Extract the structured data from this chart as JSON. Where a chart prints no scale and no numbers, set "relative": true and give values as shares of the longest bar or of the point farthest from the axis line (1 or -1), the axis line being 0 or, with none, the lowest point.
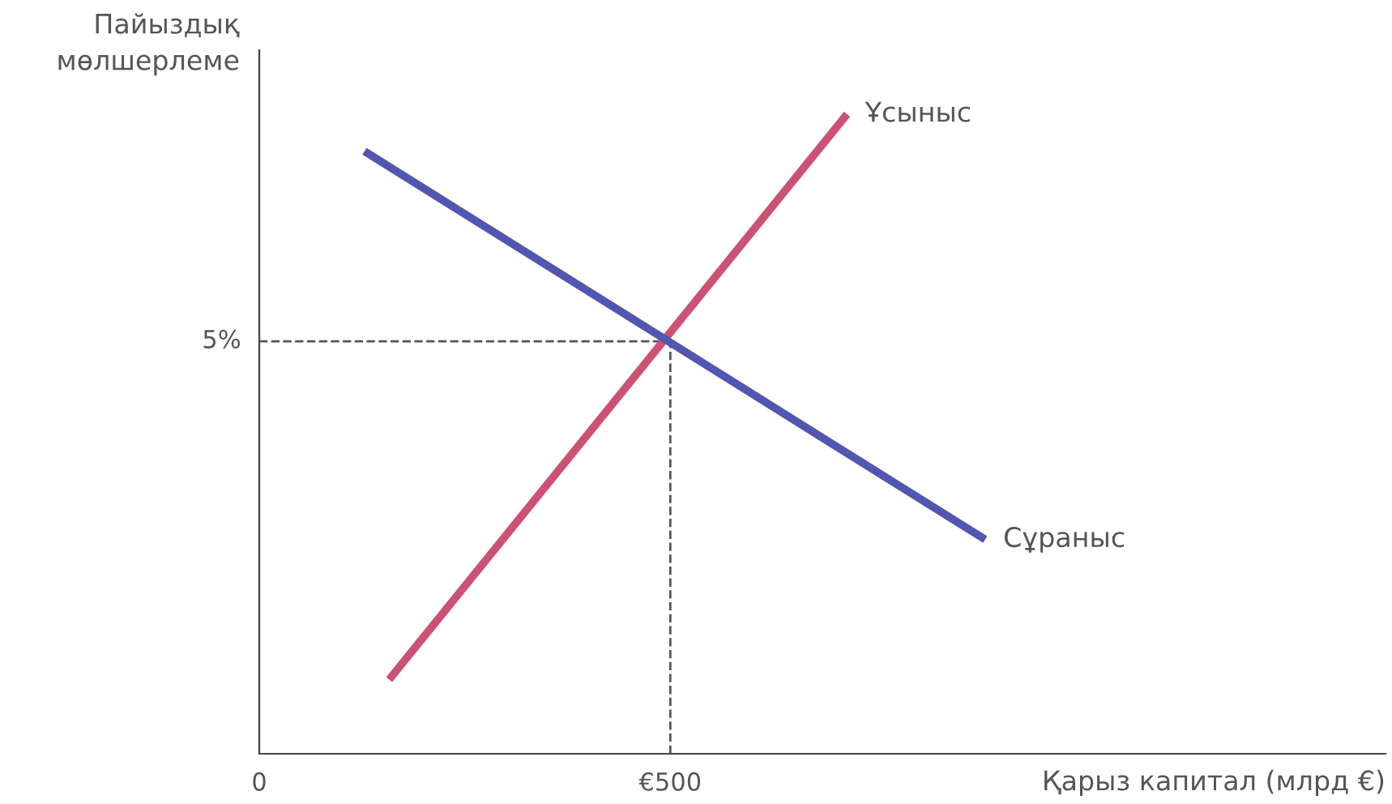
{
  "chart_data": {
    "type": "line",
    "relative": true,
    "xlabel": "Қарыз капитал (млрд €)",
    "ylabel": "Пайыздық\nмөлшерлеме",
    "xlim": [
      0,
      1370
    ],
    "xticks": [
      0,
      {
        "value": 500,
        "label": "€500"
      }
    ],
    "series": [
      {
        "name": "Ұсыныс",
        "color": "#cc5274",
        "x": [
          158,
          715
        ],
        "values": [
          0.116,
          1
        ]
      },
      {
        "name": "Сұраныс",
        "color": "#5156b0",
        "x": [
          128,
          883
        ],
        "values": [
          0.942,
          0.335
        ]
      }
    ],
    "ref_lines": [
      {
        "axis": "y",
        "value": 0.645,
        "color": "#555555",
        "line_style": "dashed"
      },
      {
        "axis": "x",
        "value": 500,
        "color": "#555555",
        "line_style": "dashed"
      }
    ],
    "annotations": [
      "5%"
    ],
    "grid": false,
    "legend": false,
    "marker": "none",
    "line_style": "solid"
  }
}
